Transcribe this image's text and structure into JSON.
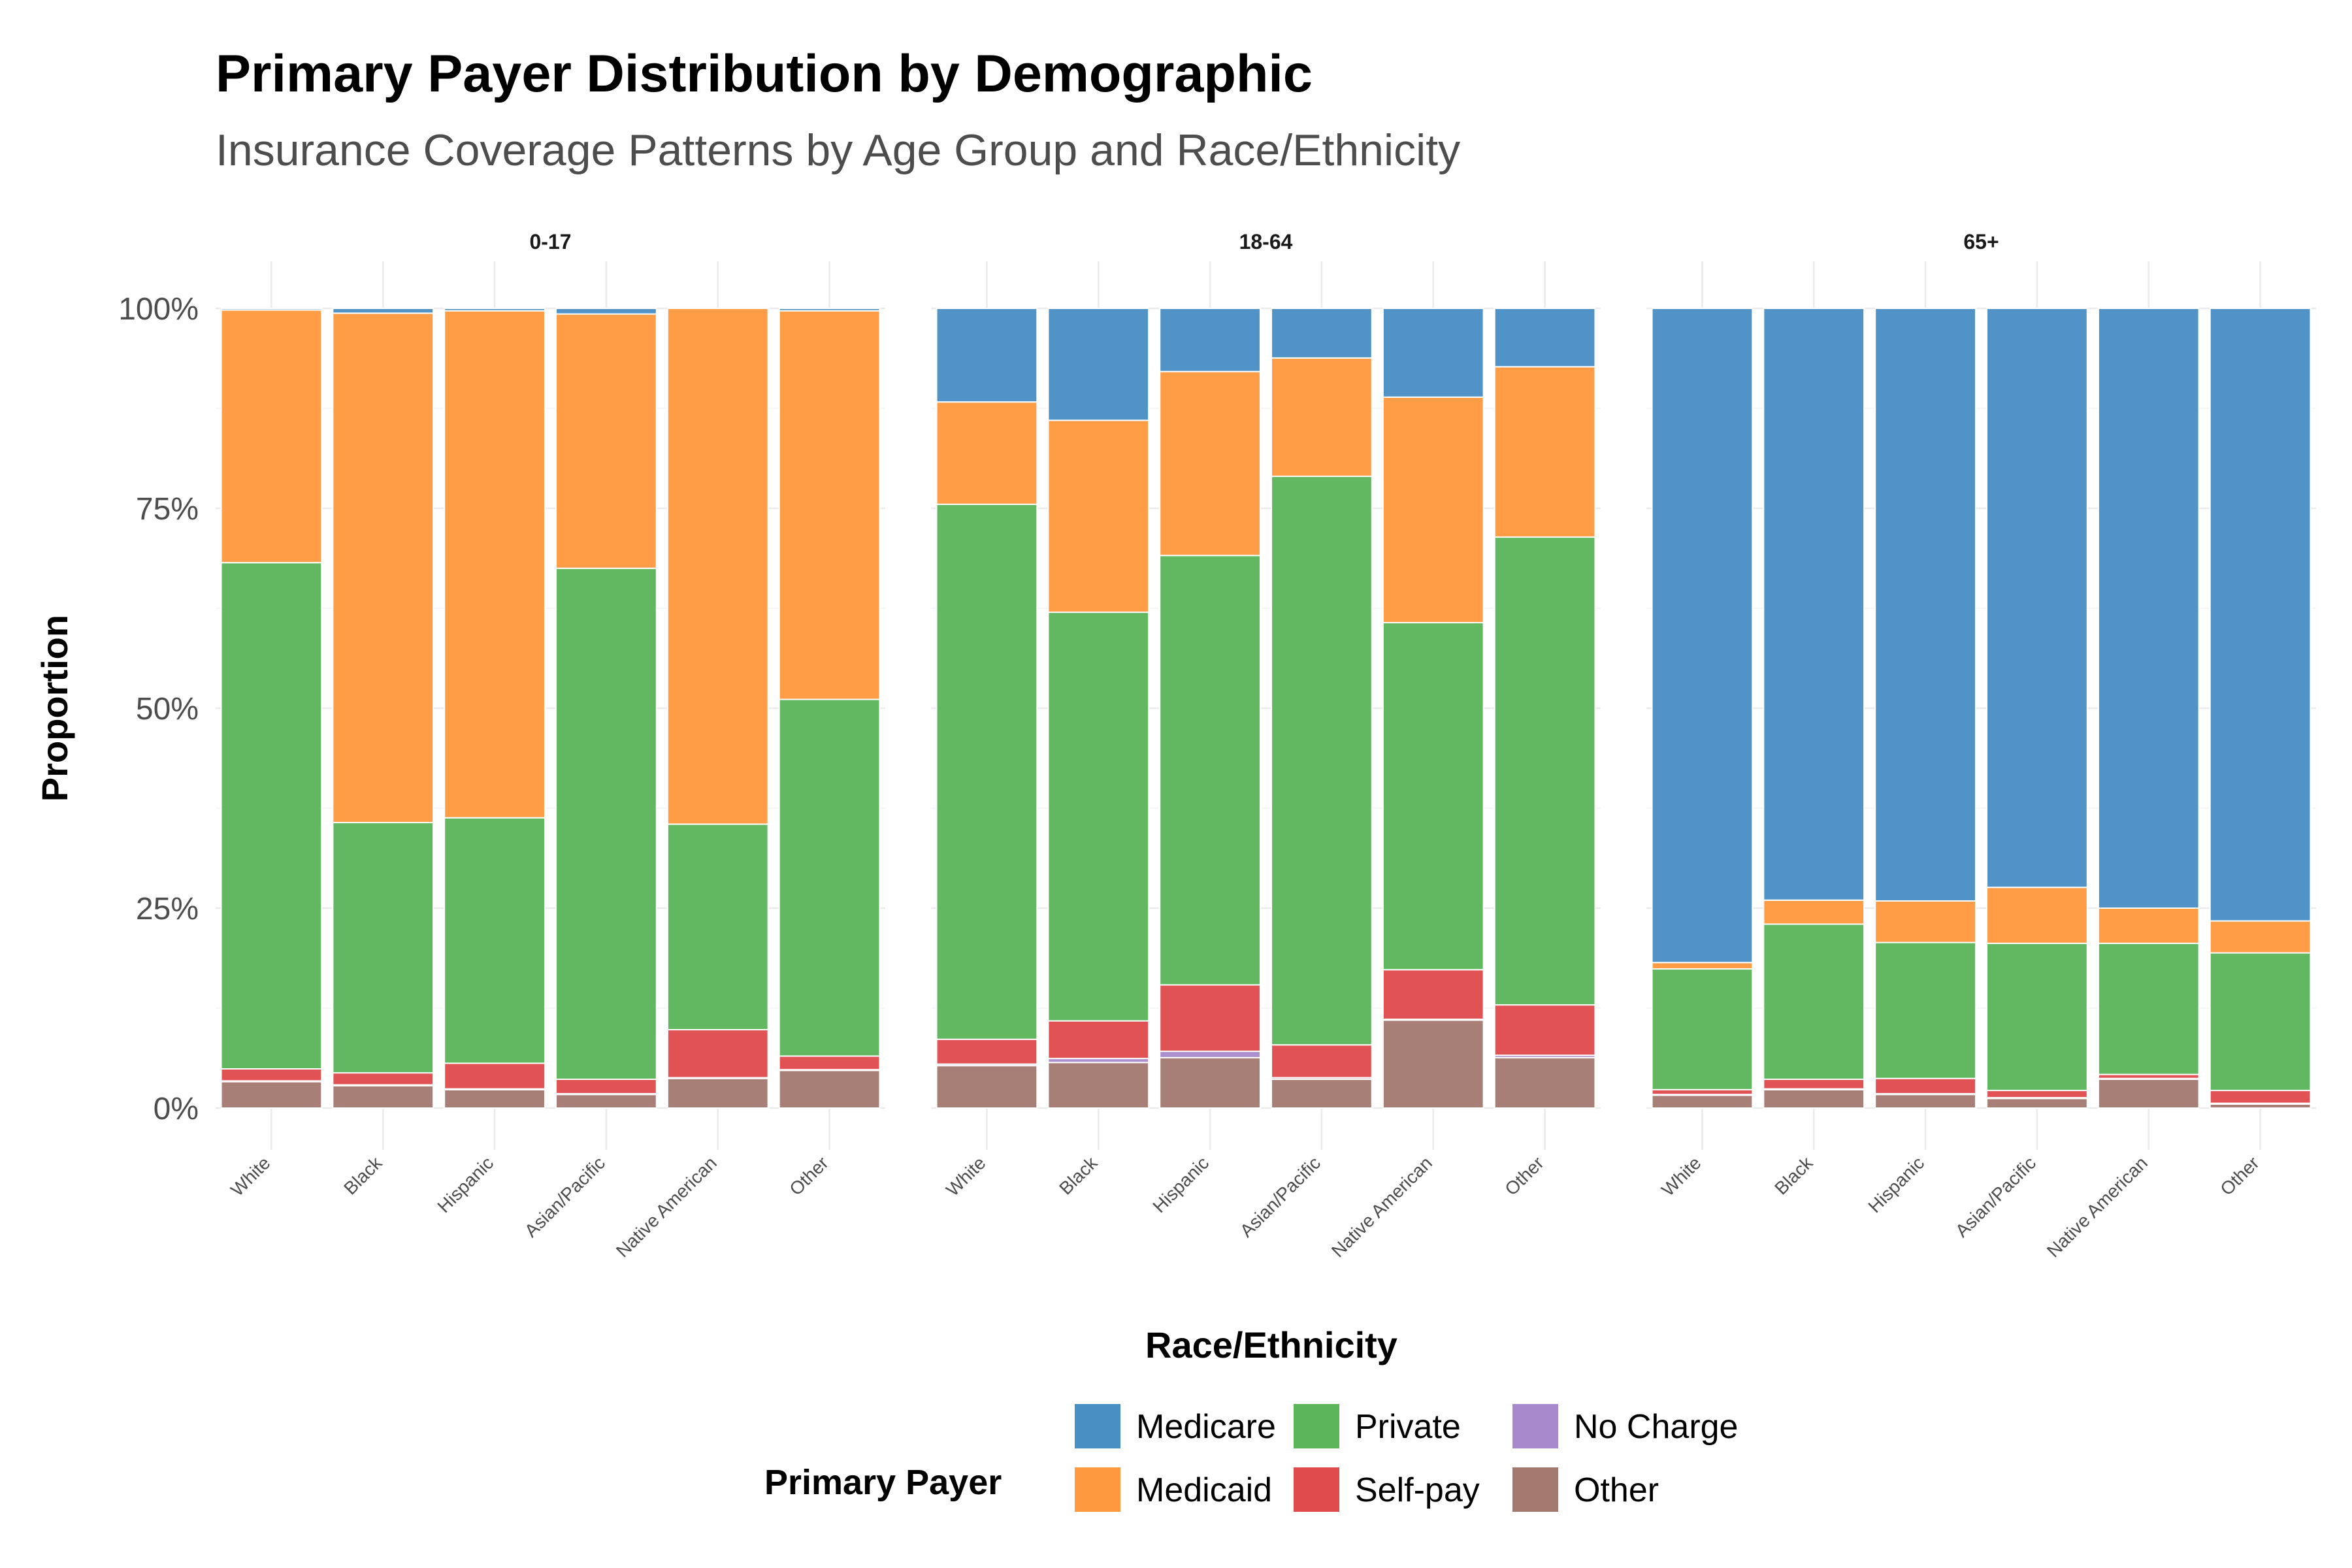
{
  "chart_data": {
    "type": "bar",
    "stacked": true,
    "normalized": true,
    "title": "Primary Payer Distribution by Demographic",
    "subtitle": "Insurance Coverage Patterns by Age Group and Race/Ethnicity",
    "xlabel": "Race/Ethnicity",
    "ylabel": "Proportion",
    "ylim": [
      0,
      1
    ],
    "y_ticks": [
      "0%",
      "25%",
      "50%",
      "75%",
      "100%"
    ],
    "grid": true,
    "legend": {
      "title": "Primary Payer",
      "position": "bottom",
      "entries": [
        "Medicare",
        "Medicaid",
        "Private",
        "Self-pay",
        "No Charge",
        "Other"
      ]
    },
    "colors": {
      "Medicare": "#4A8FC4",
      "Medicaid": "#FF993F",
      "Private": "#5BB55A",
      "Self-pay": "#E04B4E",
      "No Charge": "#A88ACC",
      "Other": "#A47A70"
    },
    "stack_order": [
      "Other",
      "No Charge",
      "Self-pay",
      "Private",
      "Medicaid",
      "Medicare"
    ],
    "categories": [
      "White",
      "Black",
      "Hispanic",
      "Asian/Pacific",
      "Native American",
      "Other"
    ],
    "facets": [
      {
        "name": "0-17",
        "bars": [
          {
            "Other": 0.033,
            "No Charge": 0.001,
            "Self-pay": 0.015,
            "Private": 0.633,
            "Medicaid": 0.316,
            "Medicare": 0.002
          },
          {
            "Other": 0.028,
            "No Charge": 0.001,
            "Self-pay": 0.015,
            "Private": 0.313,
            "Medicaid": 0.637,
            "Medicare": 0.006
          },
          {
            "Other": 0.023,
            "No Charge": 0.001,
            "Self-pay": 0.032,
            "Private": 0.307,
            "Medicaid": 0.634,
            "Medicare": 0.003
          },
          {
            "Other": 0.017,
            "No Charge": 0.001,
            "Self-pay": 0.018,
            "Private": 0.639,
            "Medicaid": 0.318,
            "Medicare": 0.007
          },
          {
            "Other": 0.037,
            "No Charge": 0.001,
            "Self-pay": 0.06,
            "Private": 0.257,
            "Medicaid": 0.645,
            "Medicare": 0.0
          },
          {
            "Other": 0.047,
            "No Charge": 0.001,
            "Self-pay": 0.017,
            "Private": 0.446,
            "Medicaid": 0.486,
            "Medicare": 0.003
          }
        ]
      },
      {
        "name": "18-64",
        "bars": [
          {
            "Other": 0.053,
            "No Charge": 0.002,
            "Self-pay": 0.031,
            "Private": 0.669,
            "Medicaid": 0.128,
            "Medicare": 0.117
          },
          {
            "Other": 0.057,
            "No Charge": 0.005,
            "Self-pay": 0.047,
            "Private": 0.511,
            "Medicaid": 0.24,
            "Medicare": 0.14
          },
          {
            "Other": 0.063,
            "No Charge": 0.008,
            "Self-pay": 0.083,
            "Private": 0.537,
            "Medicaid": 0.23,
            "Medicare": 0.079
          },
          {
            "Other": 0.036,
            "No Charge": 0.002,
            "Self-pay": 0.041,
            "Private": 0.711,
            "Medicaid": 0.148,
            "Medicare": 0.062
          },
          {
            "Other": 0.11,
            "No Charge": 0.001,
            "Self-pay": 0.062,
            "Private": 0.434,
            "Medicaid": 0.282,
            "Medicare": 0.111
          },
          {
            "Other": 0.063,
            "No Charge": 0.003,
            "Self-pay": 0.063,
            "Private": 0.585,
            "Medicaid": 0.213,
            "Medicare": 0.073
          }
        ]
      },
      {
        "name": "65+",
        "bars": [
          {
            "Other": 0.016,
            "No Charge": 0.001,
            "Self-pay": 0.006,
            "Private": 0.151,
            "Medicaid": 0.008,
            "Medicare": 0.818
          },
          {
            "Other": 0.023,
            "No Charge": 0.001,
            "Self-pay": 0.012,
            "Private": 0.194,
            "Medicaid": 0.03,
            "Medicare": 0.74
          },
          {
            "Other": 0.017,
            "No Charge": 0.001,
            "Self-pay": 0.019,
            "Private": 0.17,
            "Medicaid": 0.052,
            "Medicare": 0.741
          },
          {
            "Other": 0.012,
            "No Charge": 0.001,
            "Self-pay": 0.009,
            "Private": 0.184,
            "Medicaid": 0.07,
            "Medicare": 0.724
          },
          {
            "Other": 0.036,
            "No Charge": 0.001,
            "Self-pay": 0.005,
            "Private": 0.164,
            "Medicaid": 0.044,
            "Medicare": 0.75
          },
          {
            "Other": 0.005,
            "No Charge": 0.001,
            "Self-pay": 0.016,
            "Private": 0.172,
            "Medicaid": 0.04,
            "Medicare": 0.766
          }
        ]
      }
    ]
  }
}
